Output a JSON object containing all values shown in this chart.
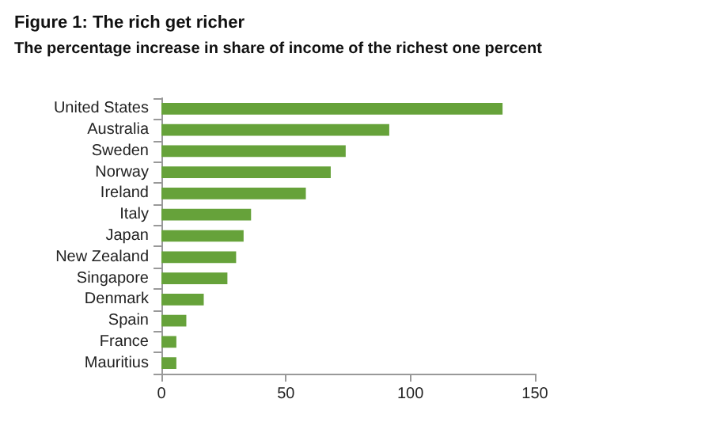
{
  "chart_data": {
    "type": "bar",
    "orientation": "horizontal",
    "title": "Figure 1: The rich get richer",
    "subtitle": "The percentage increase in share of income of the richest one percent",
    "categories": [
      "United States",
      "Australia",
      "Sweden",
      "Norway",
      "Ireland",
      "Italy",
      "Japan",
      "New Zealand",
      "Singapore",
      "Denmark",
      "Spain",
      "France",
      "Mauritius"
    ],
    "values": [
      137,
      91.5,
      74,
      68,
      58,
      36,
      33,
      30,
      26.5,
      17,
      10,
      6,
      6
    ],
    "color": "#66a23a",
    "xlim": [
      0,
      150
    ],
    "xticks": [
      0,
      50,
      100,
      150
    ],
    "grid": false
  }
}
